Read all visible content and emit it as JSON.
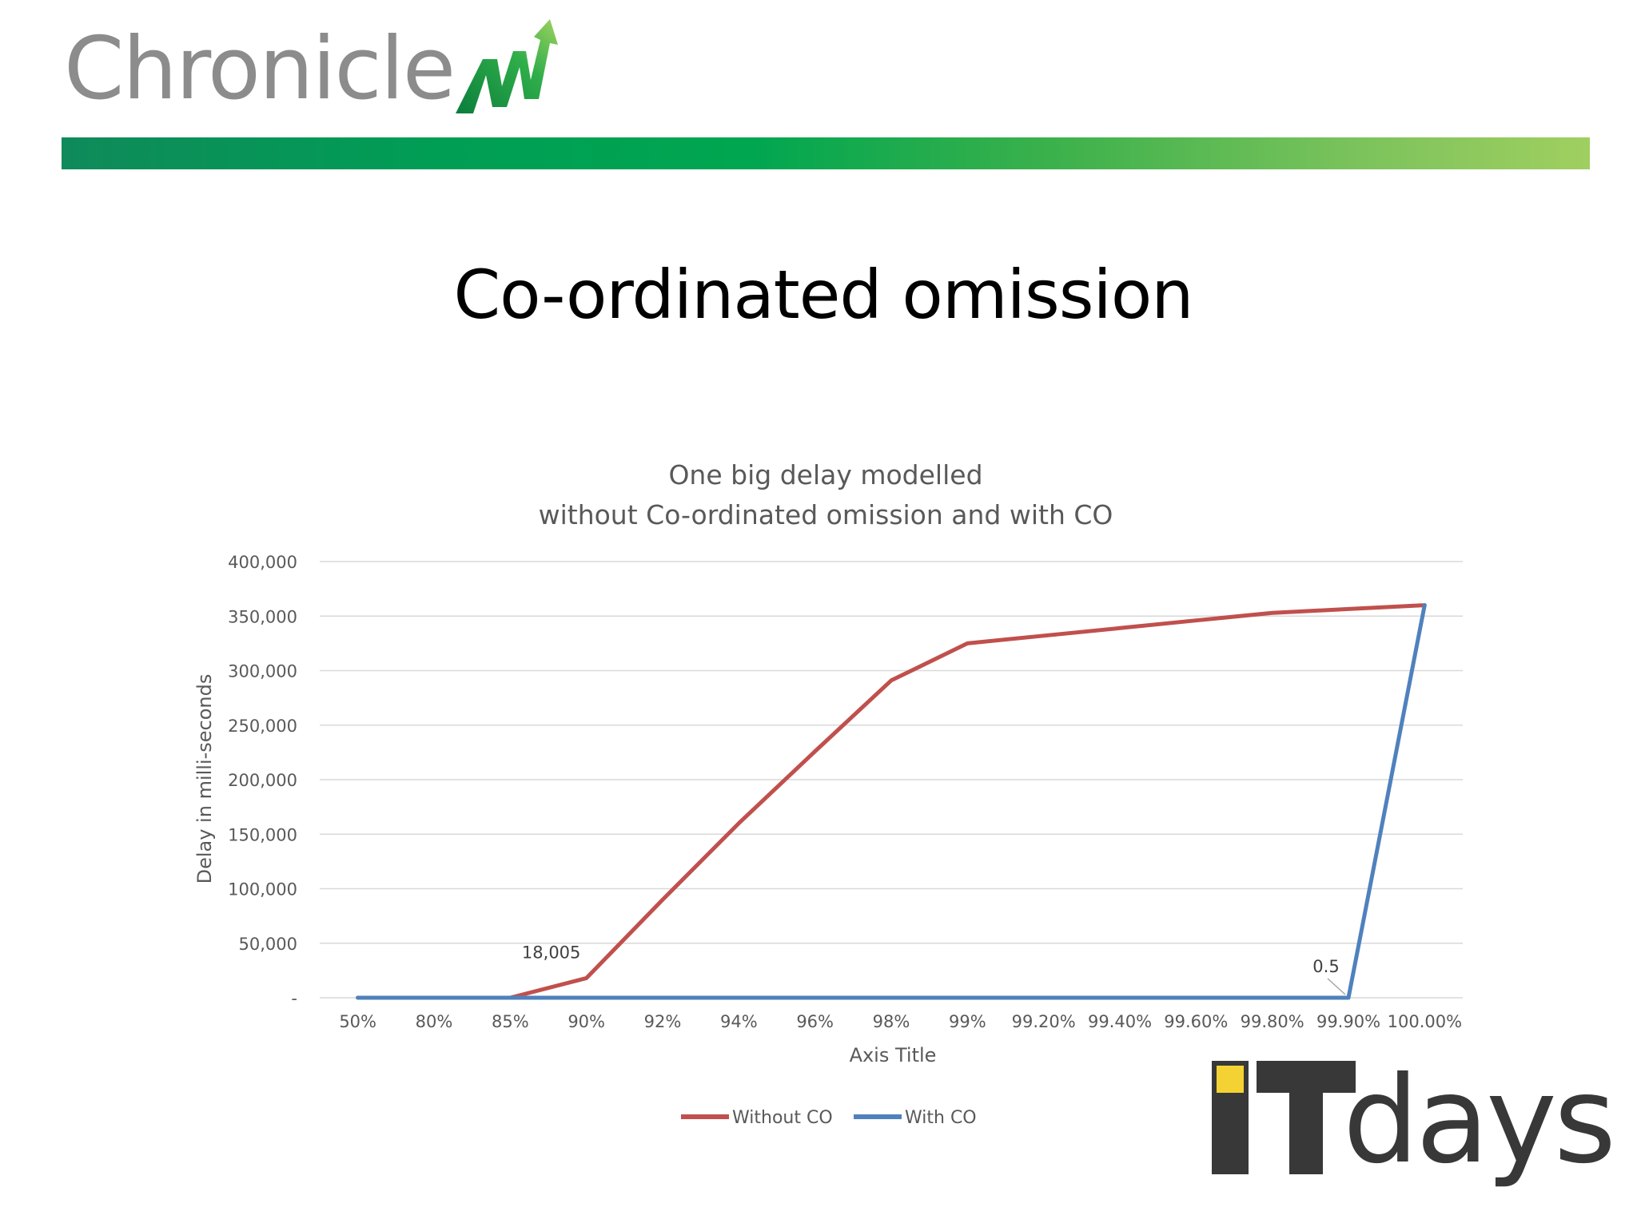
{
  "branding": {
    "logo_text": "Chronicle",
    "event_logo_text": "ITdays"
  },
  "slide": {
    "title": "Co-ordinated omission"
  },
  "colors": {
    "without_co": "#c0504d",
    "with_co": "#4f81bd",
    "gridline": "#d9d9d9",
    "text": "#595959"
  },
  "chart_data": {
    "type": "line",
    "title_lines": [
      "One big delay modelled",
      "without Co-ordinated omission and with CO"
    ],
    "xlabel": "Axis Title",
    "ylabel": "Delay in milli-seconds",
    "categories": [
      "50%",
      "80%",
      "85%",
      "90%",
      "92%",
      "94%",
      "96%",
      "98%",
      "99%",
      "99.20%",
      "99.40%",
      "99.60%",
      "99.80%",
      "99.90%",
      "100.00%"
    ],
    "ylim": [
      0,
      400000
    ],
    "yticks": [
      0,
      50000,
      100000,
      150000,
      200000,
      250000,
      300000,
      350000,
      400000
    ],
    "ytick_labels": [
      "-",
      "50,000",
      "100,000",
      "150,000",
      "200,000",
      "250,000",
      "300,000",
      "350,000",
      "400,000"
    ],
    "grid": true,
    "legend_position": "bottom",
    "series": [
      {
        "name": "Without CO",
        "values": [
          0,
          0,
          0,
          18005,
          90000,
          160000,
          226000,
          291000,
          325000,
          332000,
          339000,
          346000,
          353000,
          356500,
          360000
        ]
      },
      {
        "name": "With CO",
        "values": [
          0,
          0,
          0,
          0,
          0,
          0,
          0,
          0,
          0,
          0,
          0,
          0,
          0,
          0.5,
          360000
        ]
      }
    ],
    "annotations": [
      {
        "series": 0,
        "index": 3,
        "text": "18,005"
      },
      {
        "series": 1,
        "index": 13,
        "text": "0.5"
      }
    ]
  }
}
